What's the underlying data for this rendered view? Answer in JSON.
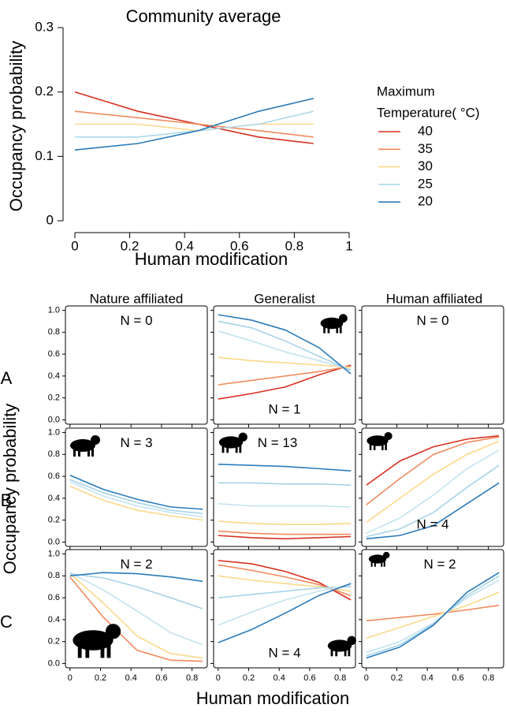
{
  "chart_data": [
    {
      "type": "line",
      "title": "Community average",
      "y_label": "Occupancy probability",
      "x_label": "Human modification",
      "legend_title": [
        "Maximum",
        "Temperature( °C)"
      ],
      "x": [
        0,
        0.23,
        0.45,
        0.67,
        0.87
      ],
      "xlim": [
        0,
        1
      ],
      "xticks": [
        0,
        0.2,
        0.4,
        0.6,
        0.8,
        1
      ],
      "ylim": [
        0,
        0.3
      ],
      "yticks": [
        0,
        0.1,
        0.2,
        0.3
      ],
      "series": [
        {
          "name": "40",
          "color": "#d7301f",
          "values": [
            0.2,
            0.17,
            0.15,
            0.13,
            0.12
          ]
        },
        {
          "name": "35",
          "color": "#f08a5c",
          "values": [
            0.17,
            0.16,
            0.15,
            0.14,
            0.13
          ]
        },
        {
          "name": "30",
          "color": "#fdd88a",
          "values": [
            0.15,
            0.15,
            0.14,
            0.15,
            0.15
          ]
        },
        {
          "name": "25",
          "color": "#abd9e9",
          "values": [
            0.13,
            0.13,
            0.14,
            0.15,
            0.17
          ]
        },
        {
          "name": "20",
          "color": "#2b7bba",
          "values": [
            0.11,
            0.12,
            0.14,
            0.17,
            0.19
          ]
        }
      ]
    },
    {
      "type": "small_multiples",
      "column_titles": [
        "Nature affiliated",
        "Generalist",
        "Human affiliated"
      ],
      "row_labels": [
        "A",
        "B",
        "C"
      ],
      "y_label": "Occupancy probability",
      "x_label": "Human modification",
      "x": [
        0,
        0.22,
        0.44,
        0.66,
        0.87
      ],
      "xlim": [
        -0.03,
        0.9
      ],
      "xticks": [
        0,
        0.2,
        0.4,
        0.6,
        0.8
      ],
      "ylim": [
        -0.04,
        1.04
      ],
      "yticks": [
        {
          "value": 0,
          "label": "0.0"
        },
        0.2,
        0.4,
        0.6,
        0.8,
        {
          "value": 1,
          "label": "1.0"
        }
      ],
      "panels": [
        {
          "n_label": "N = 0",
          "series": []
        },
        {
          "n_label": "N = 1",
          "series": [
            {
              "color": "#d7301f",
              "values": [
                0.19,
                0.24,
                0.3,
                0.41,
                0.5
              ]
            },
            {
              "color": "#f08a5c",
              "values": [
                0.32,
                0.36,
                0.4,
                0.44,
                0.49
              ]
            },
            {
              "color": "#fdd88a",
              "values": [
                0.57,
                0.54,
                0.52,
                0.5,
                0.48
              ]
            },
            {
              "color": "#c4e3ef",
              "values": [
                0.81,
                0.72,
                0.62,
                0.54,
                0.46
              ]
            },
            {
              "color": "#a6d3e6",
              "values": [
                0.9,
                0.84,
                0.72,
                0.58,
                0.45
              ]
            },
            {
              "color": "#2b7bba",
              "values": [
                0.96,
                0.91,
                0.82,
                0.66,
                0.42
              ]
            }
          ]
        },
        {
          "n_label": "N = 0",
          "series": []
        },
        {
          "n_label": "N = 3",
          "series": [
            {
              "color": "#fdd88a",
              "values": [
                0.51,
                0.38,
                0.29,
                0.24,
                0.2
              ]
            },
            {
              "color": "#c4e3ef",
              "values": [
                0.55,
                0.42,
                0.33,
                0.27,
                0.23
              ]
            },
            {
              "color": "#a6d3e6",
              "values": [
                0.57,
                0.45,
                0.36,
                0.29,
                0.26
              ]
            },
            {
              "color": "#2b7bba",
              "values": [
                0.61,
                0.48,
                0.39,
                0.32,
                0.3
              ]
            }
          ]
        },
        {
          "n_label": "N = 13",
          "series": [
            {
              "color": "#d7301f",
              "values": [
                0.06,
                0.04,
                0.03,
                0.04,
                0.05
              ]
            },
            {
              "color": "#f08a5c",
              "values": [
                0.1,
                0.08,
                0.07,
                0.07,
                0.07
              ]
            },
            {
              "color": "#fdd88a",
              "values": [
                0.19,
                0.17,
                0.16,
                0.16,
                0.17
              ]
            },
            {
              "color": "#c4e3ef",
              "values": [
                0.35,
                0.33,
                0.33,
                0.33,
                0.32
              ]
            },
            {
              "color": "#a6d3e6",
              "values": [
                0.54,
                0.54,
                0.53,
                0.53,
                0.52
              ]
            },
            {
              "color": "#2b7bba",
              "values": [
                0.71,
                0.7,
                0.69,
                0.67,
                0.65
              ]
            }
          ]
        },
        {
          "n_label": "N = 4",
          "series": [
            {
              "color": "#d7301f",
              "values": [
                0.52,
                0.74,
                0.87,
                0.94,
                0.97
              ]
            },
            {
              "color": "#f08a5c",
              "values": [
                0.34,
                0.58,
                0.8,
                0.91,
                0.96
              ]
            },
            {
              "color": "#fdd88a",
              "values": [
                0.18,
                0.4,
                0.62,
                0.8,
                0.92
              ]
            },
            {
              "color": "#c4e3ef",
              "values": [
                0.08,
                0.22,
                0.43,
                0.67,
                0.84
              ]
            },
            {
              "color": "#a6d3e6",
              "values": [
                0.05,
                0.12,
                0.27,
                0.5,
                0.7
              ]
            },
            {
              "color": "#2b7bba",
              "values": [
                0.03,
                0.06,
                0.15,
                0.35,
                0.54
              ]
            }
          ]
        },
        {
          "n_label": "N = 2",
          "series": [
            {
              "color": "#f08a5c",
              "values": [
                0.79,
                0.42,
                0.12,
                0.03,
                0.02
              ]
            },
            {
              "color": "#fdd88a",
              "values": [
                0.82,
                0.55,
                0.25,
                0.09,
                0.05
              ]
            },
            {
              "color": "#c4e3ef",
              "values": [
                0.83,
                0.67,
                0.48,
                0.28,
                0.17
              ]
            },
            {
              "color": "#a6d3e6",
              "values": [
                0.82,
                0.78,
                0.7,
                0.6,
                0.5
              ]
            },
            {
              "color": "#2b7bba",
              "values": [
                0.8,
                0.83,
                0.82,
                0.79,
                0.75
              ]
            }
          ]
        },
        {
          "n_label": "N = 4",
          "series": [
            {
              "color": "#d7301f",
              "values": [
                0.94,
                0.91,
                0.84,
                0.74,
                0.58
              ]
            },
            {
              "color": "#f08a5c",
              "values": [
                0.9,
                0.85,
                0.79,
                0.72,
                0.62
              ]
            },
            {
              "color": "#fdd88a",
              "values": [
                0.8,
                0.76,
                0.73,
                0.7,
                0.66
              ]
            },
            {
              "color": "#a6d3e6",
              "values": [
                0.6,
                0.63,
                0.66,
                0.69,
                0.7
              ]
            },
            {
              "color": "#c4e3ef",
              "values": [
                0.35,
                0.47,
                0.58,
                0.66,
                0.72
              ]
            },
            {
              "color": "#2b7bba",
              "values": [
                0.19,
                0.31,
                0.46,
                0.62,
                0.73
              ]
            }
          ]
        },
        {
          "n_label": "N = 2",
          "series": [
            {
              "color": "#f08a5c",
              "values": [
                0.39,
                0.42,
                0.45,
                0.49,
                0.53
              ]
            },
            {
              "color": "#fdd88a",
              "values": [
                0.23,
                0.33,
                0.43,
                0.53,
                0.65
              ]
            },
            {
              "color": "#c4e3ef",
              "values": [
                0.1,
                0.2,
                0.37,
                0.6,
                0.76
              ]
            },
            {
              "color": "#a6d3e6",
              "values": [
                0.07,
                0.17,
                0.36,
                0.62,
                0.8
              ]
            },
            {
              "color": "#2b7bba",
              "values": [
                0.05,
                0.15,
                0.35,
                0.65,
                0.83
              ]
            }
          ]
        }
      ]
    }
  ]
}
